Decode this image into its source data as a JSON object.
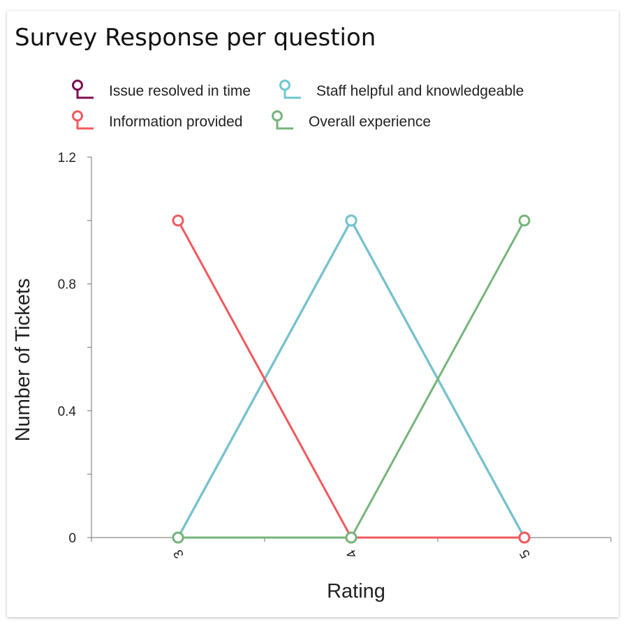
{
  "chart_data": {
    "type": "line",
    "title": "Survey Response per question",
    "xlabel": "Rating",
    "ylabel": "Number of Tickets",
    "categories": [
      "3",
      "4",
      "5"
    ],
    "ylim": [
      0,
      1.2
    ],
    "yticks": [
      0,
      0.4,
      0.8,
      1.2
    ],
    "ytick_labels": [
      "0",
      "0.4",
      "0.8",
      "1.2"
    ],
    "grid": false,
    "legend_position": "top",
    "series": [
      {
        "name": "Issue resolved in time",
        "color": "#7b0f4f",
        "values": [
          0,
          1,
          0
        ]
      },
      {
        "name": "Staff helpful and knowledgeable",
        "color": "#6fc7cf",
        "values": [
          0,
          1,
          0
        ]
      },
      {
        "name": "Information provided",
        "color": "#f0585d",
        "values": [
          1,
          0,
          0
        ]
      },
      {
        "name": "Overall experience",
        "color": "#76b47a",
        "values": [
          0,
          0,
          1
        ]
      }
    ]
  }
}
